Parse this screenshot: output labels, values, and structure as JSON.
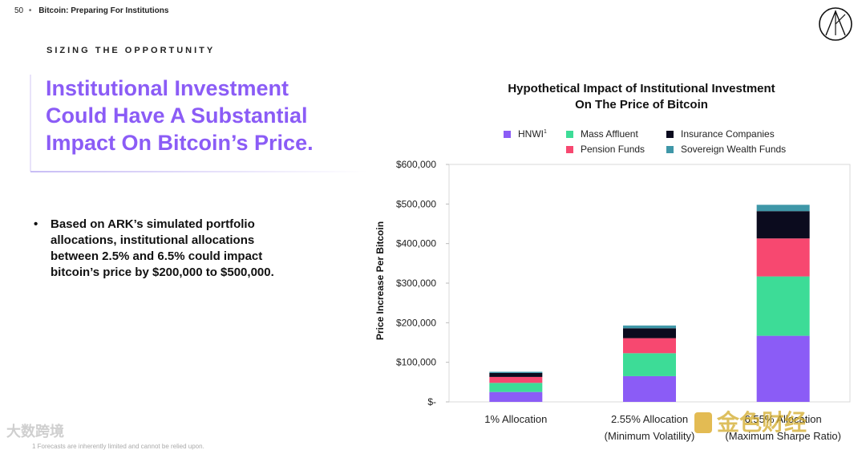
{
  "header": {
    "page_number": "50",
    "separator": "•",
    "title": "Bitcoin: Preparing For Institutions"
  },
  "kicker": "SIZING THE OPPORTUNITY",
  "headline": "Institutional Investment Could Have A Substantial Impact On Bitcoin’s Price.",
  "bullet": {
    "mark": "•",
    "text": "Based on ARK’s simulated portfolio allocations, institutional allocations between 2.5% and 6.5% could impact bitcoin’s price by $200,000 to $500,000."
  },
  "watermarks": {
    "left": "大数跨境",
    "right": "金色财经"
  },
  "footnote": "1 Forecasts are inherently limited and cannot be relied upon.",
  "colors": {
    "accent": "#8b5cf6",
    "hnwi": "#8b5cf6",
    "mass_affluent": "#3ddc97",
    "pension_funds": "#f74870",
    "insurance": "#0b0b1e",
    "sovereign": "#3f97a8"
  },
  "chart_data": {
    "type": "bar",
    "stacked": true,
    "title": "Hypothetical Impact of Institutional Investment On The Price of Bitcoin",
    "title_lines": [
      "Hypothetical Impact of Institutional Investment",
      "On The Price of Bitcoin"
    ],
    "ylabel": "Price Increase Per Bitcoin",
    "xlabel": "",
    "ylim": [
      0,
      600000
    ],
    "yticks": [
      0,
      100000,
      200000,
      300000,
      400000,
      500000,
      600000
    ],
    "ytick_labels": [
      "$-",
      "$100,000",
      "$200,000",
      "$300,000",
      "$400,000",
      "$500,000",
      "$600,000"
    ],
    "categories": [
      [
        "1% Allocation"
      ],
      [
        "2.55% Allocation",
        "(Minimum Volatility)"
      ],
      [
        "6.55% Allocation",
        "(Maximum Sharpe Ratio)"
      ]
    ],
    "legend_placement": "top",
    "series": [
      {
        "name": "HNWI",
        "label": "HNWI",
        "sup": "1",
        "color": "#8b5cf6",
        "values": [
          25000,
          65000,
          167000
        ]
      },
      {
        "name": "Mass Affluent",
        "label": "Mass Affluent",
        "color": "#3ddc97",
        "values": [
          23000,
          58000,
          150000
        ]
      },
      {
        "name": "Pension Funds",
        "label": "Pension Funds",
        "color": "#f74870",
        "values": [
          15000,
          38000,
          96000
        ]
      },
      {
        "name": "Insurance Companies",
        "label": "Insurance Companies",
        "color": "#0b0b1e",
        "values": [
          10000,
          25000,
          69000
        ]
      },
      {
        "name": "Sovereign Wealth Funds",
        "label": "Sovereign Wealth Funds",
        "color": "#3f97a8",
        "values": [
          3000,
          7000,
          16000
        ]
      }
    ]
  }
}
